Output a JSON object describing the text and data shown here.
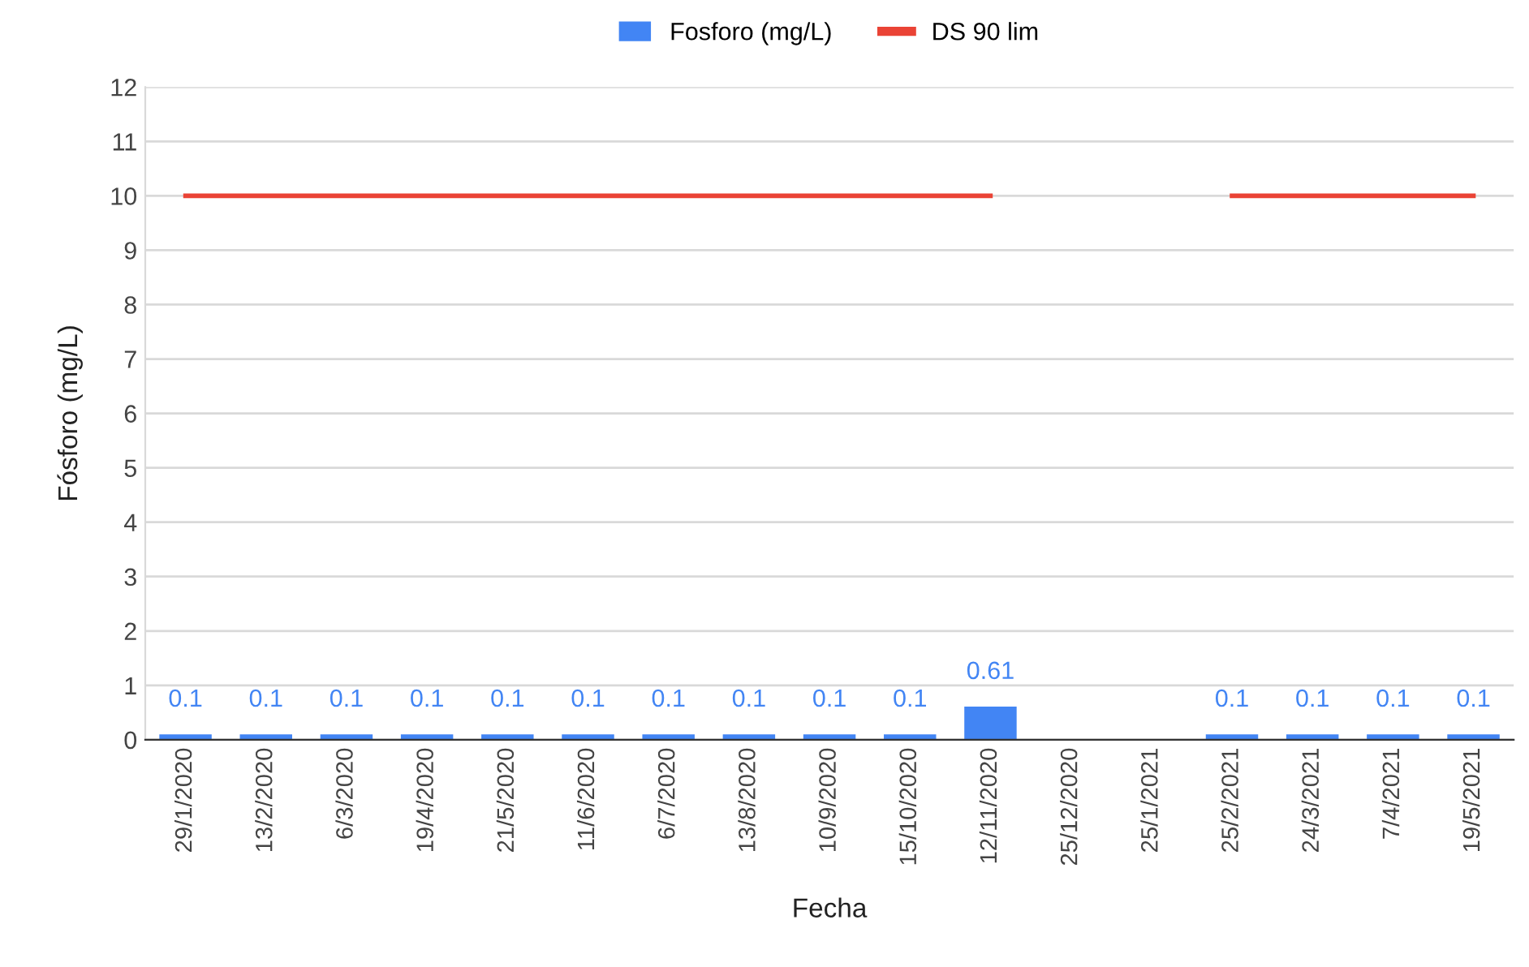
{
  "chart_data": {
    "type": "bar",
    "xlabel": "Fecha",
    "ylabel": "Fósforo (mg/L)",
    "categories": [
      "29/1/2020",
      "13/2/2020",
      "6/3/2020",
      "19/4/2020",
      "21/5/2020",
      "11/6/2020",
      "6/7/2020",
      "13/8/2020",
      "10/9/2020",
      "15/10/2020",
      "12/11/2020",
      "25/12/2020",
      "25/1/2021",
      "25/2/2021",
      "24/3/2021",
      "7/4/2021",
      "19/5/2021"
    ],
    "series": [
      {
        "name": "Fosforo (mg/L)",
        "color": "#4285f4",
        "values": [
          0.1,
          0.1,
          0.1,
          0.1,
          0.1,
          0.1,
          0.1,
          0.1,
          0.1,
          0.1,
          0.61,
          null,
          null,
          0.1,
          0.1,
          0.1,
          0.1
        ],
        "value_labels": [
          "0.1",
          "0.1",
          "0.1",
          "0.1",
          "0.1",
          "0.1",
          "0.1",
          "0.1",
          "0.1",
          "0.1",
          "0.61",
          null,
          null,
          "0.1",
          "0.1",
          "0.1",
          "0.1"
        ]
      },
      {
        "name": "DS 90 lim",
        "type": "line",
        "color": "#ea4335",
        "values": [
          10,
          10,
          10,
          10,
          10,
          10,
          10,
          10,
          10,
          10,
          10,
          null,
          null,
          10,
          10,
          10,
          10
        ]
      }
    ],
    "ylim": [
      0,
      12
    ],
    "yticks": [
      0,
      1,
      2,
      3,
      4,
      5,
      6,
      7,
      8,
      9,
      10,
      11,
      12
    ],
    "grid": "y",
    "legend": "top",
    "marker": "none",
    "line_style": "solid"
  }
}
